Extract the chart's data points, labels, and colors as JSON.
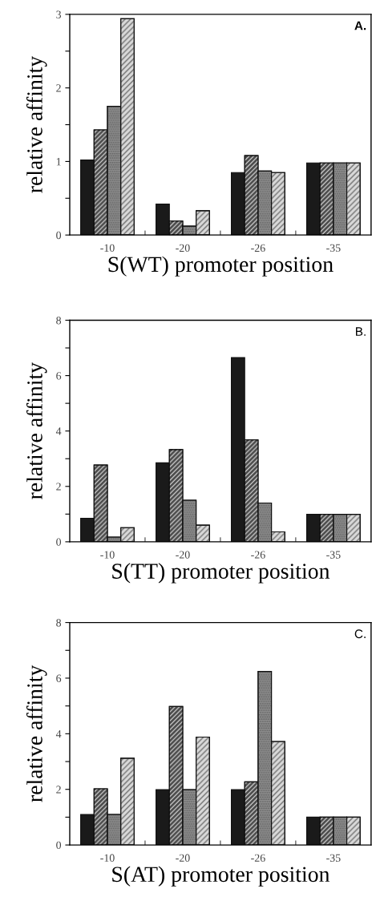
{
  "chart_data": [
    {
      "type": "bar",
      "ylabel": "relative affinity",
      "xlabel": "S(WT) promoter position",
      "annotations": [
        "A."
      ],
      "categories": [
        "-10",
        "-20",
        "-26",
        "-35"
      ],
      "ylim": [
        0,
        3
      ],
      "yticks": [
        0,
        {
          "value": 0.5,
          "label": null
        },
        1,
        {
          "value": 1.5,
          "label": null
        },
        2,
        {
          "value": 2.5,
          "label": null
        },
        3
      ],
      "grid": false,
      "legend": false,
      "series": [
        {
          "color": "#1a1a1a",
          "values": [
            1.02,
            0.42,
            0.85,
            0.98
          ]
        },
        {
          "color": "#4a4a4a",
          "values": [
            1.43,
            0.19,
            1.08,
            0.98
          ]
        },
        {
          "color": "#8c8c8c",
          "values": [
            1.75,
            0.12,
            0.87,
            0.98
          ]
        },
        {
          "color": "#d9d9d9",
          "values": [
            2.94,
            0.33,
            0.85,
            0.98
          ]
        }
      ]
    },
    {
      "type": "bar",
      "ylabel": "relative affinity",
      "xlabel": "S(TT) promoter position",
      "annotations": [
        "B."
      ],
      "categories": [
        "-10",
        "-20",
        "-26",
        "-35"
      ],
      "ylim": [
        0,
        8
      ],
      "yticks": [
        0,
        {
          "value": 1,
          "label": null
        },
        2,
        {
          "value": 3,
          "label": null
        },
        4,
        {
          "value": 5,
          "label": null
        },
        6,
        {
          "value": 7,
          "label": null
        },
        8
      ],
      "grid": false,
      "legend": false,
      "series": [
        {
          "color": "#1a1a1a",
          "values": [
            0.85,
            2.85,
            6.65,
            0.99
          ]
        },
        {
          "color": "#4a4a4a",
          "values": [
            2.77,
            3.33,
            3.68,
            0.99
          ]
        },
        {
          "color": "#8c8c8c",
          "values": [
            0.17,
            1.5,
            1.4,
            0.99
          ]
        },
        {
          "color": "#d9d9d9",
          "values": [
            0.51,
            0.6,
            0.36,
            0.99
          ]
        }
      ]
    },
    {
      "type": "bar",
      "ylabel": "relative affinity",
      "xlabel": "S(AT) promoter position",
      "annotations": [
        "C."
      ],
      "categories": [
        "-10",
        "-20",
        "-26",
        "-35"
      ],
      "ylim": [
        0,
        8
      ],
      "yticks": [
        0,
        {
          "value": 1,
          "label": null
        },
        2,
        {
          "value": 3,
          "label": null
        },
        4,
        {
          "value": 5,
          "label": null
        },
        6,
        {
          "value": 7,
          "label": null
        },
        8
      ],
      "grid": false,
      "legend": false,
      "series": [
        {
          "color": "#1a1a1a",
          "values": [
            1.1,
            1.99,
            1.99,
            1.0
          ]
        },
        {
          "color": "#4a4a4a",
          "values": [
            2.02,
            4.98,
            2.27,
            1.0
          ]
        },
        {
          "color": "#8c8c8c",
          "values": [
            1.1,
            1.99,
            6.24,
            1.0
          ]
        },
        {
          "color": "#d9d9d9",
          "values": [
            3.12,
            3.88,
            3.72,
            1.0
          ]
        }
      ]
    }
  ]
}
